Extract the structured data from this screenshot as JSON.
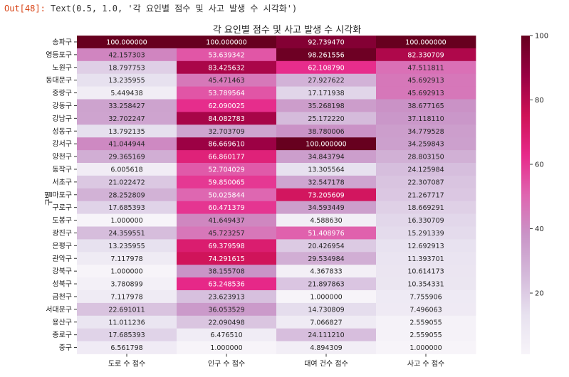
{
  "cell": {
    "prompt": "Out[48]:",
    "output_text": "Text(0.5, 1.0, '각 요인별 점수 및 사고 발생 수 시각화')"
  },
  "chart_data": {
    "type": "heatmap",
    "title": "각 요인별 점수 및 사고 발생 수 시각화",
    "ylabel": "구별",
    "xlabel": "",
    "columns": [
      "도로 수 점수",
      "인구 수 점수",
      "대여 건수 점수",
      "사고 수 점수"
    ],
    "rows": [
      "송파구",
      "영등포구",
      "노원구",
      "동대문구",
      "중랑구",
      "강동구",
      "강남구",
      "성동구",
      "강서구",
      "양천구",
      "동작구",
      "서초구",
      "마포구",
      "구로구",
      "도봉구",
      "광진구",
      "은평구",
      "관악구",
      "강북구",
      "성북구",
      "금천구",
      "서대문구",
      "용산구",
      "종로구",
      "중구"
    ],
    "values": [
      [
        100.0,
        100.0,
        92.73947,
        100.0
      ],
      [
        42.157303,
        53.639342,
        98.261556,
        82.330709
      ],
      [
        18.797753,
        83.425632,
        62.10879,
        47.511811
      ],
      [
        13.235955,
        45.471463,
        27.927622,
        45.692913
      ],
      [
        5.449438,
        53.789564,
        17.171938,
        45.692913
      ],
      [
        33.258427,
        62.090025,
        35.268198,
        38.677165
      ],
      [
        32.702247,
        84.082783,
        25.17222,
        37.11811
      ],
      [
        13.792135,
        32.703709,
        38.780006,
        34.779528
      ],
      [
        41.044944,
        86.66961,
        100.0,
        34.259843
      ],
      [
        29.365169,
        66.860177,
        34.843794,
        28.80315
      ],
      [
        6.005618,
        52.704029,
        13.305564,
        24.125984
      ],
      [
        21.022472,
        59.850065,
        32.547178,
        22.307087
      ],
      [
        28.252809,
        50.025844,
        73.205609,
        21.267717
      ],
      [
        17.685393,
        60.471379,
        34.593449,
        18.669291
      ],
      [
        1.0,
        41.649437,
        4.58863,
        16.330709
      ],
      [
        24.359551,
        45.723257,
        51.408976,
        15.291339
      ],
      [
        13.235955,
        69.379598,
        20.426954,
        12.692913
      ],
      [
        7.117978,
        74.291615,
        29.534984,
        11.393701
      ],
      [
        1.0,
        38.155708,
        4.367833,
        10.614173
      ],
      [
        3.780899,
        63.248536,
        21.897863,
        10.354331
      ],
      [
        7.117978,
        23.623913,
        1.0,
        7.755906
      ],
      [
        22.691011,
        36.053529,
        14.730809,
        7.496063
      ],
      [
        11.011236,
        22.090498,
        7.066827,
        2.559055
      ],
      [
        17.685393,
        6.47651,
        24.11121,
        2.559055
      ],
      [
        6.561798,
        1.0,
        4.894309,
        1.0
      ]
    ],
    "value_format": "%.6f",
    "vmin": 1,
    "vmax": 100,
    "colormap": "PuRd",
    "colorbar": {
      "ticks": [
        20,
        40,
        60,
        80,
        100
      ]
    }
  }
}
